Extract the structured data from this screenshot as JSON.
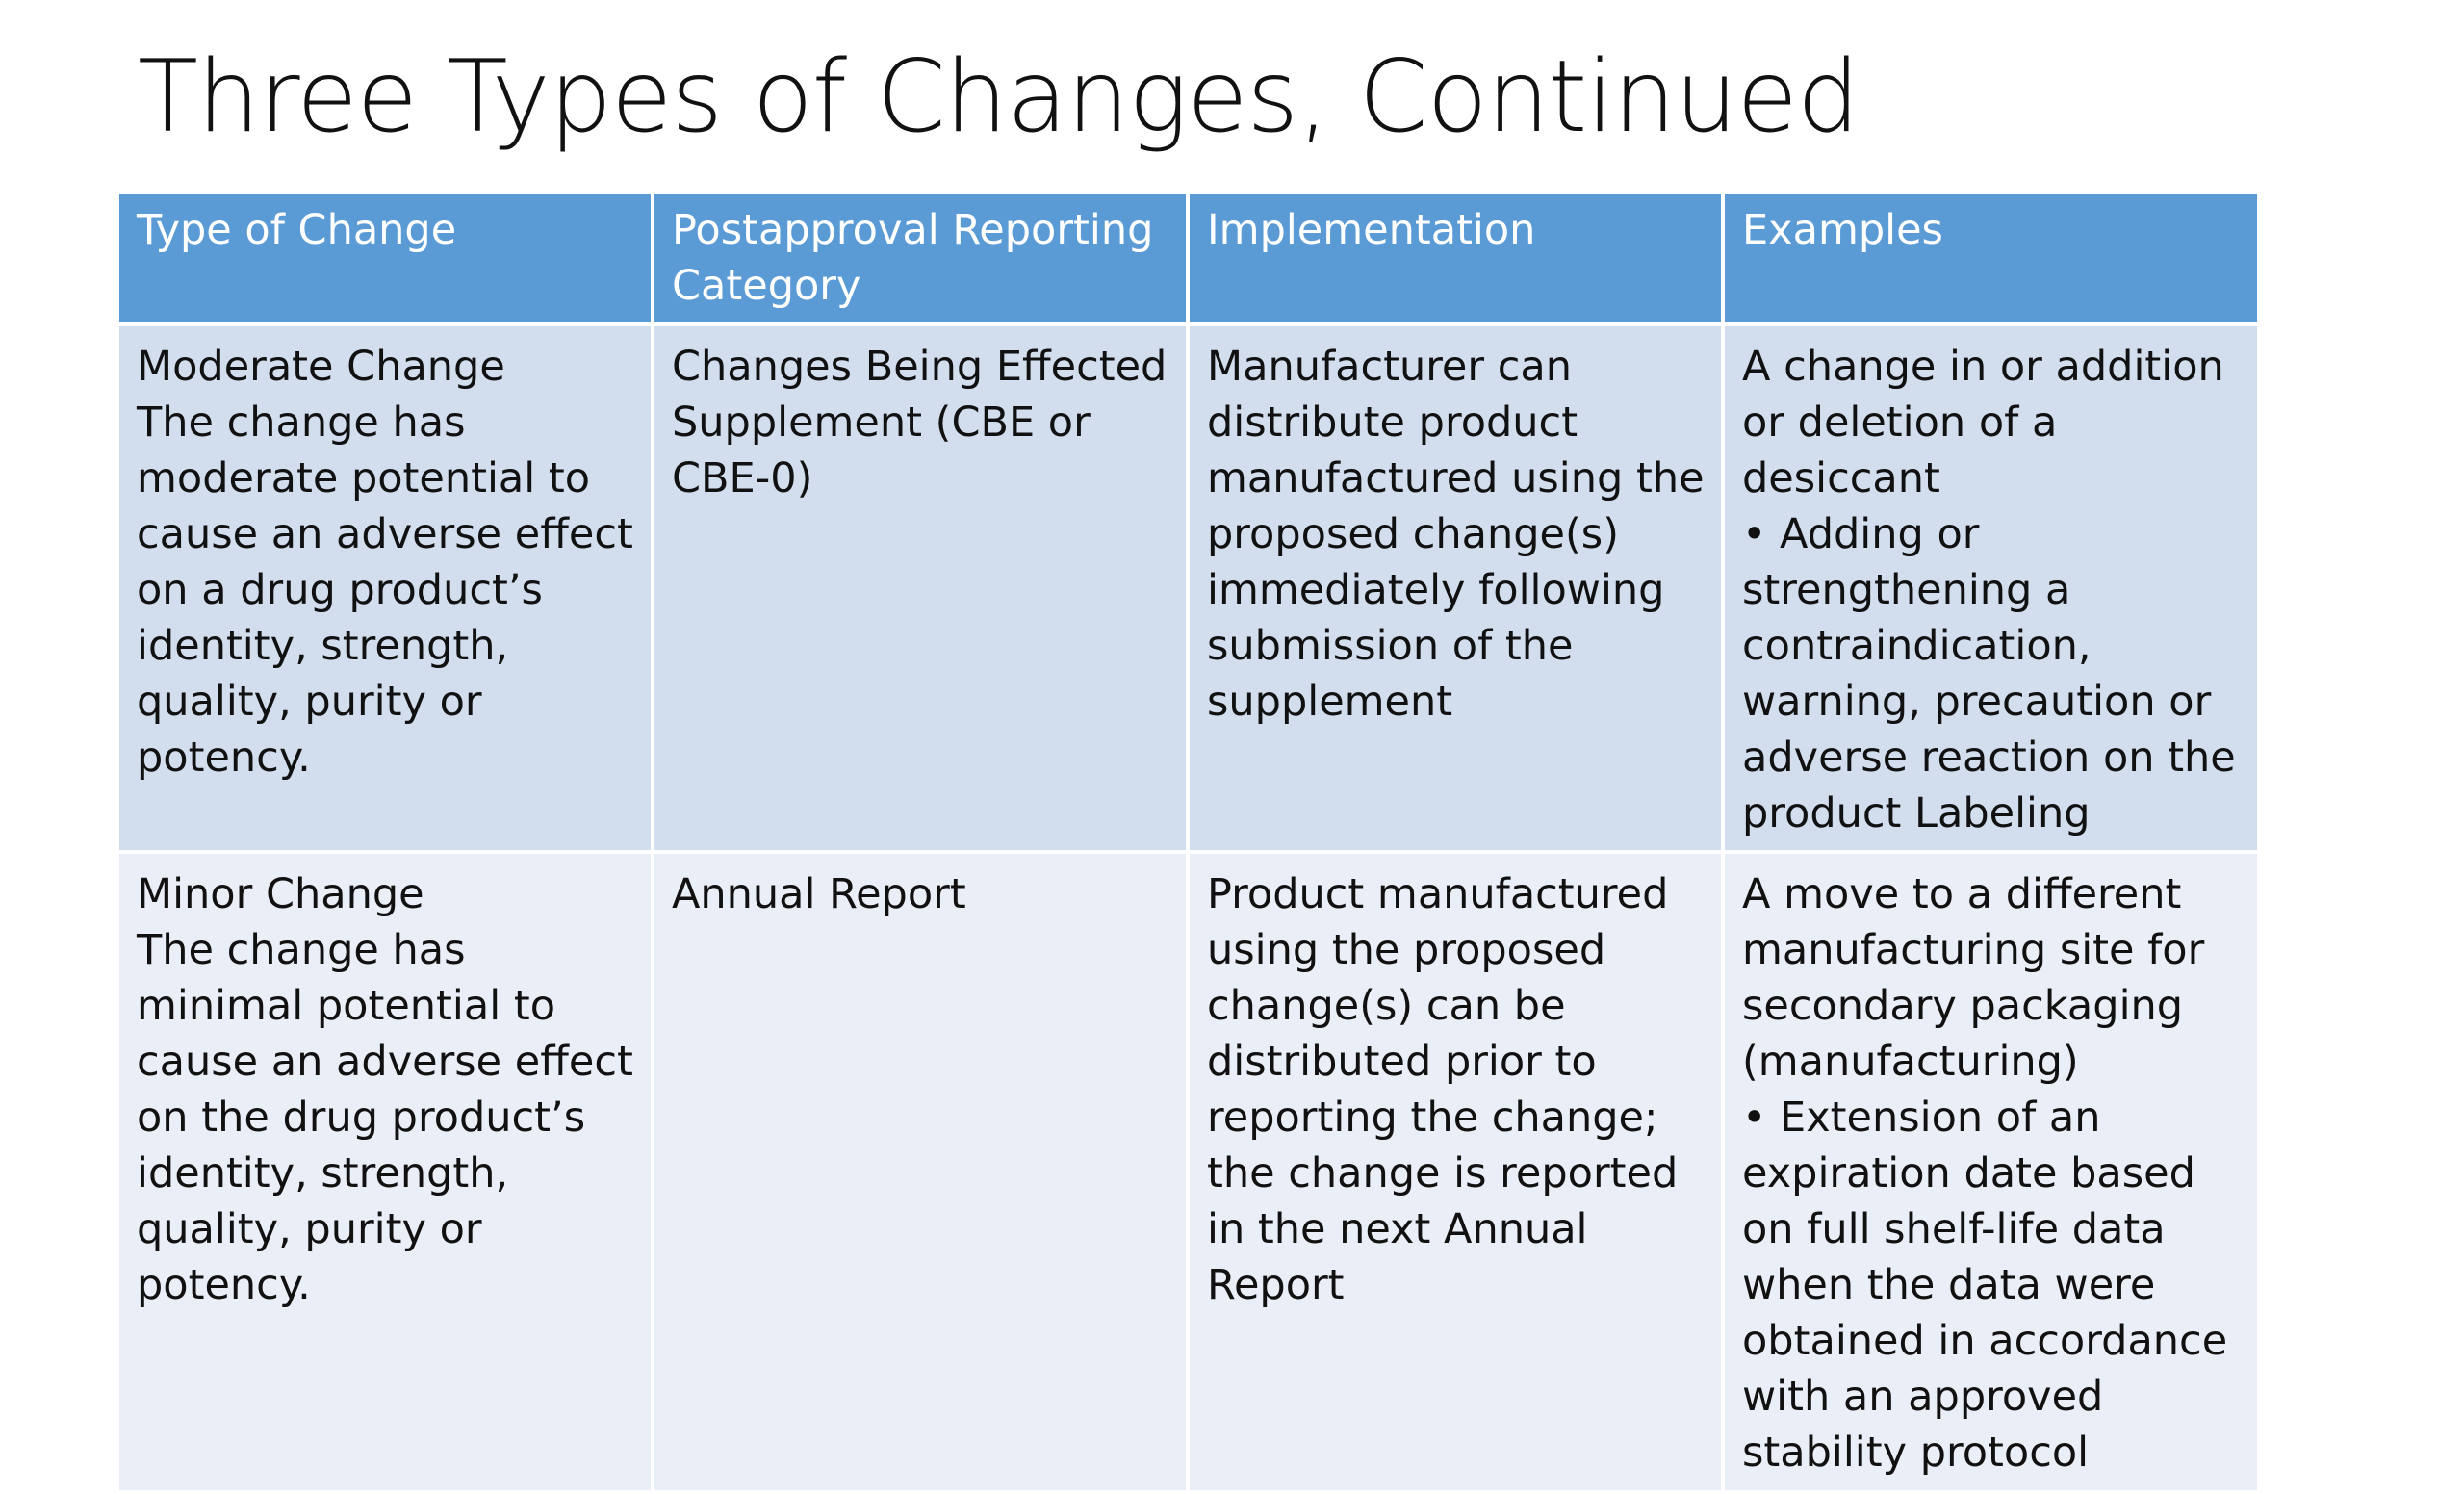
{
  "slide": {
    "title": "Three Types of Changes, Continued"
  },
  "table": {
    "headers": [
      "Type of Change",
      "Postapproval Reporting Category",
      "Implementation",
      "Examples"
    ],
    "rows": [
      {
        "type_name": "Moderate Change",
        "type_description": "The change has moderate potential to cause an adverse effect on a drug product’s identity, strength, quality, purity or potency.",
        "reporting_category": "Changes Being Effected Supplement (CBE or CBE-0)",
        "implementation": "Manufacturer can distribute product manufactured using the proposed change(s) immediately following submission of the supplement",
        "examples": [
          "A change in or addition or deletion of a desiccant",
          "• Adding or strengthening a contraindication, warning, precaution or adverse reaction on the product Labeling"
        ]
      },
      {
        "type_name": "Minor Change",
        "type_description": "The change has minimal potential to cause an adverse effect on the drug product’s identity, strength, quality, purity or potency.",
        "reporting_category": "Annual Report",
        "implementation": "Product manufactured using the proposed change(s) can be distributed prior to reporting the change; the change is reported in the next Annual Report",
        "examples": [
          "A move to a different manufacturing site for secondary packaging (manufacturing)",
          "• Extension of an expiration date based on full shelf-life data when the data were obtained in accordance with an approved stability protocol"
        ]
      }
    ]
  }
}
